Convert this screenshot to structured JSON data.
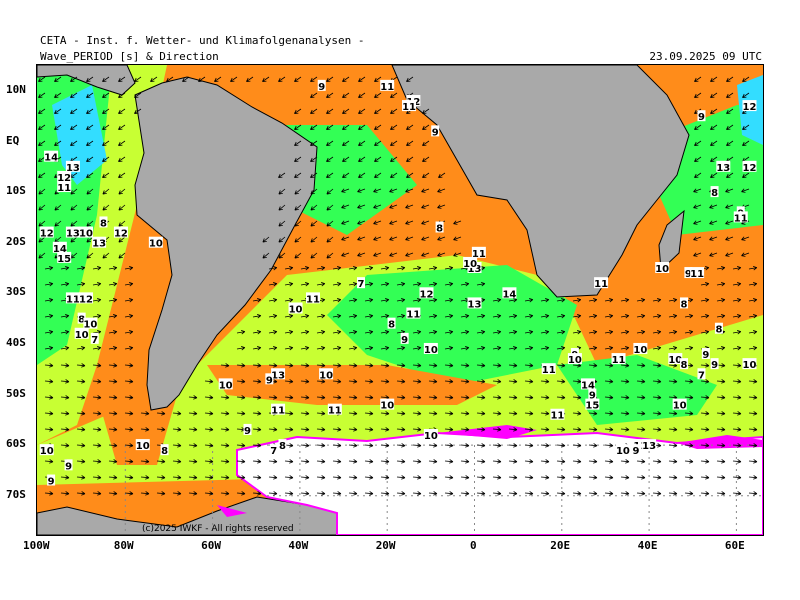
{
  "header": {
    "institute": "CETA - Inst. f. Wetter- und Klimafolgenanalysen -",
    "variable": "Wave_PERIOD [s] & Direction",
    "valid_time": "23.09.2025 09 UTC"
  },
  "copyright": "(c)2025 IWKF - All rights reserved",
  "axes": {
    "lat_labels": [
      "10N",
      "EQ",
      "10S",
      "20S",
      "30S",
      "40S",
      "50S",
      "60S",
      "70S"
    ],
    "lon_labels": [
      "100W",
      "80W",
      "60W",
      "40W",
      "20W",
      "0",
      "20E",
      "40E",
      "60E"
    ]
  },
  "colors": {
    "land": "#a9a9a9",
    "ice": "#ffffff",
    "ice_edge": "#ff00ff",
    "period_low": "#ff8c1a",
    "period_mid": "#c8ff33",
    "period_high": "#33ff55",
    "period_max": "#33ddff",
    "arrow": "#000000"
  },
  "period_labels": [
    {
      "v": "9",
      "lon": -35,
      "lat": 11
    },
    {
      "v": "11",
      "lon": -20,
      "lat": 11
    },
    {
      "v": "12",
      "lon": -14,
      "lat": 8
    },
    {
      "v": "11",
      "lon": -15,
      "lat": 7
    },
    {
      "v": "9",
      "lon": -9,
      "lat": 2
    },
    {
      "v": "12",
      "lon": 63,
      "lat": 7
    },
    {
      "v": "9",
      "lon": 52,
      "lat": 5
    },
    {
      "v": "13",
      "lon": 57,
      "lat": -5
    },
    {
      "v": "12",
      "lon": 63,
      "lat": -5
    },
    {
      "v": "8",
      "lon": 55,
      "lat": -10
    },
    {
      "v": "9",
      "lon": 61,
      "lat": -14
    },
    {
      "v": "11",
      "lon": 61,
      "lat": -15
    },
    {
      "v": "14",
      "lon": -97,
      "lat": -3
    },
    {
      "v": "13",
      "lon": -92,
      "lat": -5
    },
    {
      "v": "12",
      "lon": -94,
      "lat": -7
    },
    {
      "v": "11",
      "lon": -94,
      "lat": -9
    },
    {
      "v": "8",
      "lon": -85,
      "lat": -16
    },
    {
      "v": "12",
      "lon": -98,
      "lat": -18
    },
    {
      "v": "13",
      "lon": -92,
      "lat": -18
    },
    {
      "v": "10",
      "lon": -89,
      "lat": -18
    },
    {
      "v": "12",
      "lon": -81,
      "lat": -18
    },
    {
      "v": "13",
      "lon": -86,
      "lat": -20
    },
    {
      "v": "10",
      "lon": -73,
      "lat": -20
    },
    {
      "v": "14",
      "lon": -95,
      "lat": -21
    },
    {
      "v": "15",
      "lon": -94,
      "lat": -23
    },
    {
      "v": "8",
      "lon": -8,
      "lat": -17
    },
    {
      "v": "11",
      "lon": 1,
      "lat": -22
    },
    {
      "v": "13",
      "lon": 0,
      "lat": -25
    },
    {
      "v": "10",
      "lon": -1,
      "lat": -24
    },
    {
      "v": "10",
      "lon": 43,
      "lat": -25
    },
    {
      "v": "9",
      "lon": 49,
      "lat": -26
    },
    {
      "v": "11",
      "lon": 51,
      "lat": -26
    },
    {
      "v": "11",
      "lon": 29,
      "lat": -28
    },
    {
      "v": "7",
      "lon": -26,
      "lat": -28
    },
    {
      "v": "12",
      "lon": -11,
      "lat": -30
    },
    {
      "v": "14",
      "lon": 8,
      "lat": -30
    },
    {
      "v": "13",
      "lon": 0,
      "lat": -32
    },
    {
      "v": "11",
      "lon": -92,
      "lat": -31
    },
    {
      "v": "12",
      "lon": -89,
      "lat": -31
    },
    {
      "v": "11",
      "lon": -37,
      "lat": -31
    },
    {
      "v": "10",
      "lon": -41,
      "lat": -33
    },
    {
      "v": "8",
      "lon": 48,
      "lat": -32
    },
    {
      "v": "11",
      "lon": -14,
      "lat": -34
    },
    {
      "v": "8",
      "lon": -19,
      "lat": -36
    },
    {
      "v": "8",
      "lon": -90,
      "lat": -35
    },
    {
      "v": "10",
      "lon": -88,
      "lat": -36
    },
    {
      "v": "10",
      "lon": -90,
      "lat": -38
    },
    {
      "v": "7",
      "lon": -87,
      "lat": -39
    },
    {
      "v": "8",
      "lon": 56,
      "lat": -37
    },
    {
      "v": "9",
      "lon": -16,
      "lat": -39
    },
    {
      "v": "10",
      "lon": -10,
      "lat": -41
    },
    {
      "v": "10",
      "lon": 38,
      "lat": -41
    },
    {
      "v": "9",
      "lon": 23,
      "lat": -42
    },
    {
      "v": "10",
      "lon": 23,
      "lat": -43
    },
    {
      "v": "11",
      "lon": 33,
      "lat": -43
    },
    {
      "v": "10",
      "lon": 46,
      "lat": -43
    },
    {
      "v": "8",
      "lon": 48,
      "lat": -44
    },
    {
      "v": "9",
      "lon": 53,
      "lat": -42
    },
    {
      "v": "9",
      "lon": 55,
      "lat": -44
    },
    {
      "v": "10",
      "lon": 63,
      "lat": -44
    },
    {
      "v": "11",
      "lon": 17,
      "lat": -45
    },
    {
      "v": "7",
      "lon": 52,
      "lat": -46
    },
    {
      "v": "13",
      "lon": -45,
      "lat": -46
    },
    {
      "v": "9",
      "lon": -47,
      "lat": -47
    },
    {
      "v": "10",
      "lon": -34,
      "lat": -46
    },
    {
      "v": "10",
      "lon": -57,
      "lat": -48
    },
    {
      "v": "14",
      "lon": 26,
      "lat": -48
    },
    {
      "v": "9",
      "lon": 27,
      "lat": -50
    },
    {
      "v": "15",
      "lon": 27,
      "lat": -52
    },
    {
      "v": "10",
      "lon": -20,
      "lat": -52
    },
    {
      "v": "11",
      "lon": -45,
      "lat": -53
    },
    {
      "v": "11",
      "lon": -32,
      "lat": -53
    },
    {
      "v": "10",
      "lon": 47,
      "lat": -52
    },
    {
      "v": "11",
      "lon": 19,
      "lat": -54
    },
    {
      "v": "9",
      "lon": -52,
      "lat": -57
    },
    {
      "v": "10",
      "lon": -10,
      "lat": -58
    },
    {
      "v": "10",
      "lon": -76,
      "lat": -60
    },
    {
      "v": "8",
      "lon": -71,
      "lat": -61
    },
    {
      "v": "8",
      "lon": -44,
      "lat": -60
    },
    {
      "v": "7",
      "lon": -46,
      "lat": -61
    },
    {
      "v": "11",
      "lon": 38,
      "lat": -60
    },
    {
      "v": "13",
      "lon": 40,
      "lat": -60
    },
    {
      "v": "10",
      "lon": 34,
      "lat": -61
    },
    {
      "v": "9",
      "lon": 37,
      "lat": -61
    },
    {
      "v": "10",
      "lon": -98,
      "lat": -61
    },
    {
      "v": "9",
      "lon": -93,
      "lat": -64
    },
    {
      "v": "9",
      "lon": -97,
      "lat": -67
    }
  ]
}
